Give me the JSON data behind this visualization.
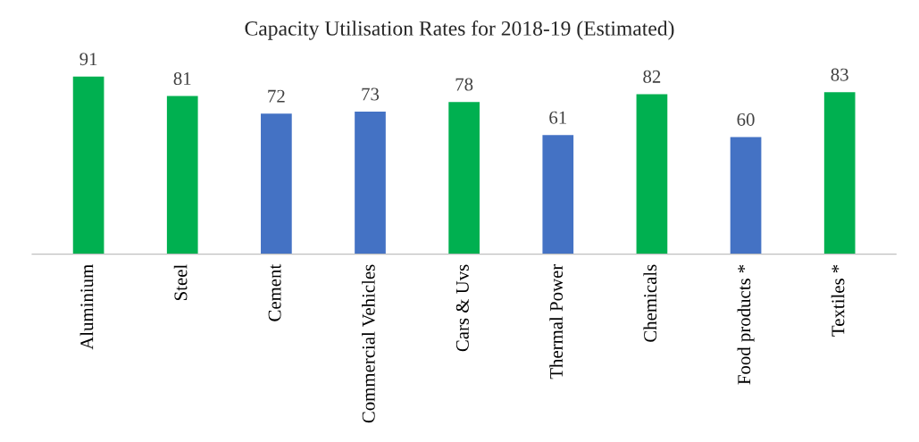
{
  "chart_data": {
    "type": "bar",
    "title": "Capacity Utilisation Rates for 2018-19 (Estimated)",
    "categories": [
      "Aluminium",
      "Steel",
      "Cement",
      "Commercial Vehicles",
      "Cars & Uvs",
      "Thermal Power",
      "Chemicals",
      "Food products *",
      "Textiles *"
    ],
    "values": [
      91,
      81,
      72,
      73,
      78,
      61,
      82,
      60,
      83
    ],
    "colors": [
      "#00b050",
      "#00b050",
      "#4472c4",
      "#4472c4",
      "#00b050",
      "#4472c4",
      "#00b050",
      "#4472c4",
      "#00b050"
    ],
    "tick_labels": "x",
    "data_labels": true
  }
}
